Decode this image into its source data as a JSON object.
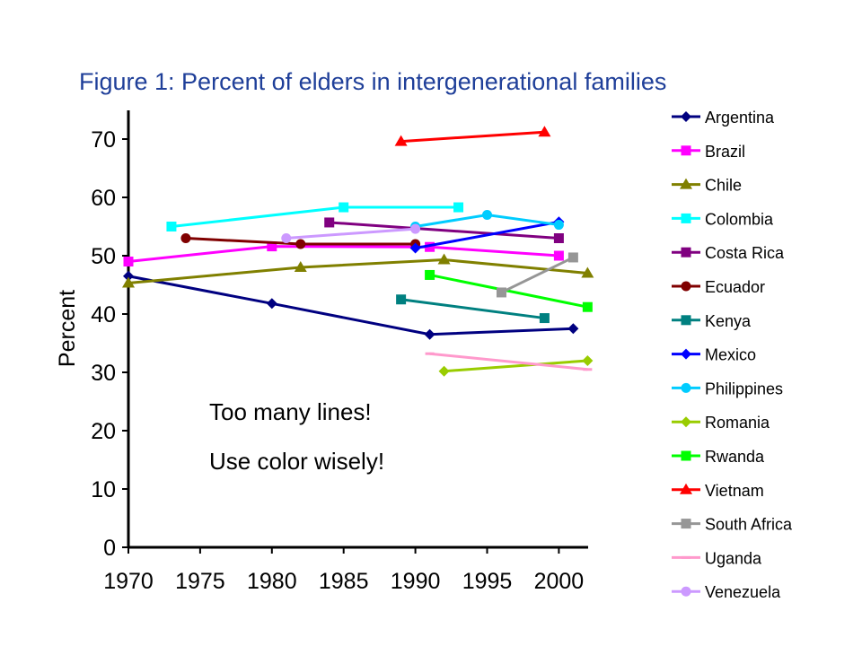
{
  "chart_data": {
    "type": "line",
    "title": "Figure 1: Percent of elders in intergenerational families",
    "xlabel": "",
    "ylabel": "Percent",
    "xlim": [
      1970,
      2002.5
    ],
    "ylim": [
      0,
      75
    ],
    "xticks": [
      "1970",
      "1975",
      "1980",
      "1985",
      "1990",
      "1995",
      "2000"
    ],
    "yticks": [
      "0",
      "10",
      "20",
      "30",
      "40",
      "50",
      "60",
      "70"
    ],
    "grid": false,
    "legend_position": "right",
    "series": [
      {
        "name": "Argentina",
        "color": "#000080",
        "marker": "diamond",
        "points": [
          [
            1970,
            46.5
          ],
          [
            1980,
            41.8
          ],
          [
            1991,
            36.5
          ],
          [
            2001,
            37.5
          ]
        ]
      },
      {
        "name": "Brazil",
        "color": "#ff00ff",
        "marker": "square",
        "points": [
          [
            1970,
            49
          ],
          [
            1980,
            51.6
          ],
          [
            1991,
            51.5
          ],
          [
            2000,
            50
          ]
        ]
      },
      {
        "name": "Chile",
        "color": "#808000",
        "marker": "triangle",
        "points": [
          [
            1970,
            45.3
          ],
          [
            1982,
            48
          ],
          [
            1992,
            49.3
          ],
          [
            2002,
            47
          ]
        ]
      },
      {
        "name": "Colombia",
        "color": "#00ffff",
        "marker": "square",
        "points": [
          [
            1973,
            55
          ],
          [
            1985,
            58.3
          ],
          [
            1993,
            58.3
          ]
        ]
      },
      {
        "name": "Costa Rica",
        "color": "#800080",
        "marker": "square",
        "points": [
          [
            1984,
            55.7
          ],
          [
            2000,
            53
          ]
        ]
      },
      {
        "name": "Ecuador",
        "color": "#800000",
        "marker": "circle",
        "points": [
          [
            1974,
            53
          ],
          [
            1982,
            52
          ],
          [
            1990,
            52
          ]
        ]
      },
      {
        "name": "Kenya",
        "color": "#008080",
        "marker": "square",
        "points": [
          [
            1989,
            42.5
          ],
          [
            1999,
            39.3
          ]
        ]
      },
      {
        "name": "Mexico",
        "color": "#0000ff",
        "marker": "diamond",
        "points": [
          [
            1990,
            51.3
          ],
          [
            2000,
            55.8
          ]
        ]
      },
      {
        "name": "Philippines",
        "color": "#00ccff",
        "marker": "circle",
        "points": [
          [
            1990,
            55
          ],
          [
            1995,
            57
          ],
          [
            2000,
            55.3
          ]
        ]
      },
      {
        "name": "Romania",
        "color": "#99cc00",
        "marker": "diamond",
        "points": [
          [
            1992,
            30.2
          ],
          [
            2002,
            32
          ]
        ]
      },
      {
        "name": "Rwanda",
        "color": "#00ff00",
        "marker": "square",
        "points": [
          [
            1991,
            46.7
          ],
          [
            2002,
            41.2
          ]
        ]
      },
      {
        "name": "Vietnam",
        "color": "#ff0000",
        "marker": "triangle",
        "points": [
          [
            1989,
            69.6
          ],
          [
            1999,
            71.2
          ]
        ]
      },
      {
        "name": "South Africa",
        "color": "#969696",
        "marker": "square",
        "points": [
          [
            1996,
            43.7
          ],
          [
            2001,
            49.7
          ]
        ]
      },
      {
        "name": "Uganda",
        "color": "#ff99cc",
        "marker": "dash",
        "points": [
          [
            1991,
            33.2
          ],
          [
            2002,
            30.5
          ]
        ]
      },
      {
        "name": "Venezuela",
        "color": "#cc99ff",
        "marker": "circle",
        "points": [
          [
            1981,
            53
          ],
          [
            1990,
            54.6
          ]
        ]
      }
    ],
    "annotations": [
      "Too many lines!",
      "Use color wisely!"
    ]
  }
}
